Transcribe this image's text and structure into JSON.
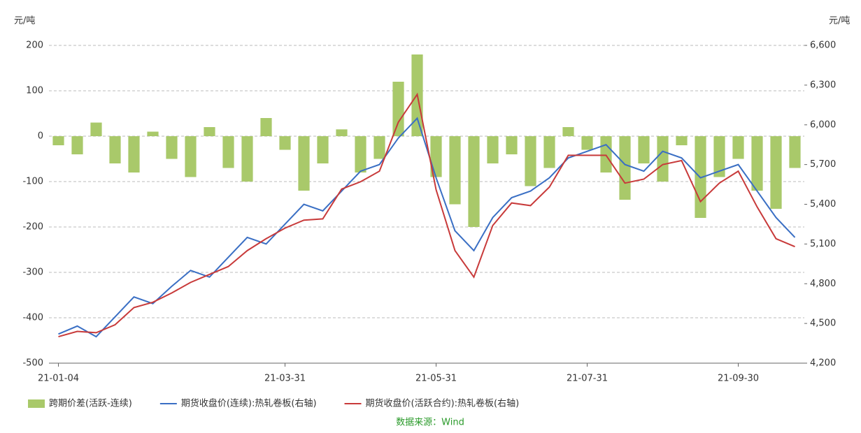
{
  "chart_data": {
    "type": "bar-line",
    "y_unit": "元/吨",
    "y2_unit": "元/吨",
    "categories": [
      "21-01-04",
      null,
      null,
      null,
      null,
      null,
      null,
      null,
      null,
      null,
      null,
      null,
      "21-03-31",
      null,
      null,
      null,
      null,
      null,
      null,
      null,
      "21-05-31",
      null,
      null,
      null,
      null,
      null,
      null,
      null,
      "21-07-31",
      null,
      null,
      null,
      null,
      null,
      null,
      null,
      "21-09-30",
      null,
      null,
      null
    ],
    "series": [
      {
        "name": "跨期价差(活跃-连续)",
        "type": "bar",
        "color": "#a9c96a",
        "values": [
          -20,
          -40,
          30,
          -60,
          -80,
          10,
          -50,
          -90,
          20,
          -70,
          -100,
          40,
          -30,
          -120,
          -60,
          15,
          -80,
          -50,
          120,
          180,
          -90,
          -150,
          -200,
          -60,
          -40,
          -110,
          -70,
          20,
          -30,
          -80,
          -140,
          -60,
          -100,
          -20,
          -180,
          -90,
          -50,
          -120,
          -160,
          -70
        ]
      },
      {
        "name": "期货收盘价(连续):热轧卷板(右轴)",
        "type": "line",
        "axis": "y2",
        "color": "#3a6fc4",
        "values": [
          4420,
          4480,
          4400,
          4550,
          4700,
          4650,
          4780,
          4900,
          4850,
          5000,
          5150,
          5100,
          5250,
          5400,
          5350,
          5500,
          5650,
          5700,
          5900,
          6050,
          5600,
          5200,
          5050,
          5300,
          5450,
          5500,
          5600,
          5750,
          5800,
          5850,
          5700,
          5650,
          5800,
          5750,
          5600,
          5650,
          5700,
          5500,
          5300,
          5150
        ]
      },
      {
        "name": "期货收盘价(活跃合约):热轧卷板(右轴)",
        "type": "line",
        "axis": "y2",
        "color": "#c83a3a",
        "values": [
          4400,
          4440,
          4430,
          4490,
          4620,
          4660,
          4730,
          4810,
          4870,
          4930,
          5050,
          5140,
          5220,
          5280,
          5290,
          5515,
          5570,
          5650,
          6020,
          6230,
          5510,
          5050,
          4850,
          5240,
          5410,
          5390,
          5530,
          5770,
          5770,
          5770,
          5560,
          5590,
          5700,
          5730,
          5420,
          5560,
          5650,
          5380,
          5140,
          5080
        ]
      }
    ],
    "ylim": [
      -500,
      200
    ],
    "yticks": [
      -500,
      -400,
      -300,
      -200,
      -100,
      0,
      100,
      200
    ],
    "y2lim": [
      4200,
      6600
    ],
    "y2ticks": [
      {
        "value": 4200,
        "label": "4,200"
      },
      {
        "value": 4500,
        "label": "4,500"
      },
      {
        "value": 4800,
        "label": "4,800"
      },
      {
        "value": 5100,
        "label": "5,100"
      },
      {
        "value": 5400,
        "label": "5,400"
      },
      {
        "value": 5700,
        "label": "5,700"
      },
      {
        "value": 6000,
        "label": "6,000"
      },
      {
        "value": 6300,
        "label": "6,300"
      },
      {
        "value": 6600,
        "label": "6,600"
      }
    ],
    "grid": true,
    "source": "数据来源：Wind"
  }
}
